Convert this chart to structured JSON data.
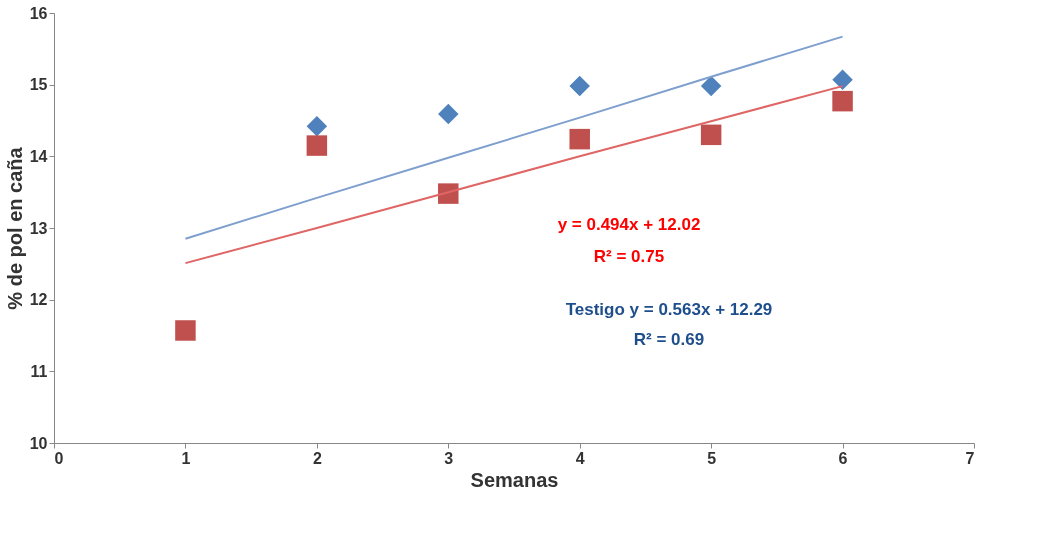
{
  "chart_data": {
    "type": "scatter",
    "xlabel": "Semanas",
    "ylabel": "% de pol en caña",
    "x": [
      1,
      2,
      3,
      4,
      5,
      6
    ],
    "xlim": [
      0,
      7
    ],
    "xticks": [
      0,
      1,
      2,
      3,
      4,
      5,
      6,
      7
    ],
    "ylim": [
      10,
      16
    ],
    "yticks": [
      10,
      11,
      12,
      13,
      14,
      15,
      16
    ],
    "grid": false,
    "series": [
      {
        "color": "#4f81bd",
        "marker": "diamond",
        "values": [
          null,
          14.42,
          14.59,
          14.98,
          14.98,
          15.07
        ]
      },
      {
        "color": "#c0504d",
        "marker": "square",
        "values": [
          11.57,
          14.15,
          13.48,
          14.24,
          14.3,
          14.77
        ]
      },
      {
        "type": "line",
        "color": "#e06666",
        "line_style": "solid",
        "values": [
          12.51,
          13.0,
          13.5,
          14.0,
          14.49,
          14.98
        ]
      },
      {
        "type": "line",
        "color": "#7f9fcf",
        "line_style": "solid",
        "values": [
          12.85,
          13.42,
          13.98,
          14.54,
          15.11,
          15.67
        ]
      }
    ],
    "annotations": [
      "y = 0.494x + 12.02",
      "R² = 0.75",
      "Testigo y = 0.563x + 12.29",
      "R² = 0.69"
    ]
  }
}
